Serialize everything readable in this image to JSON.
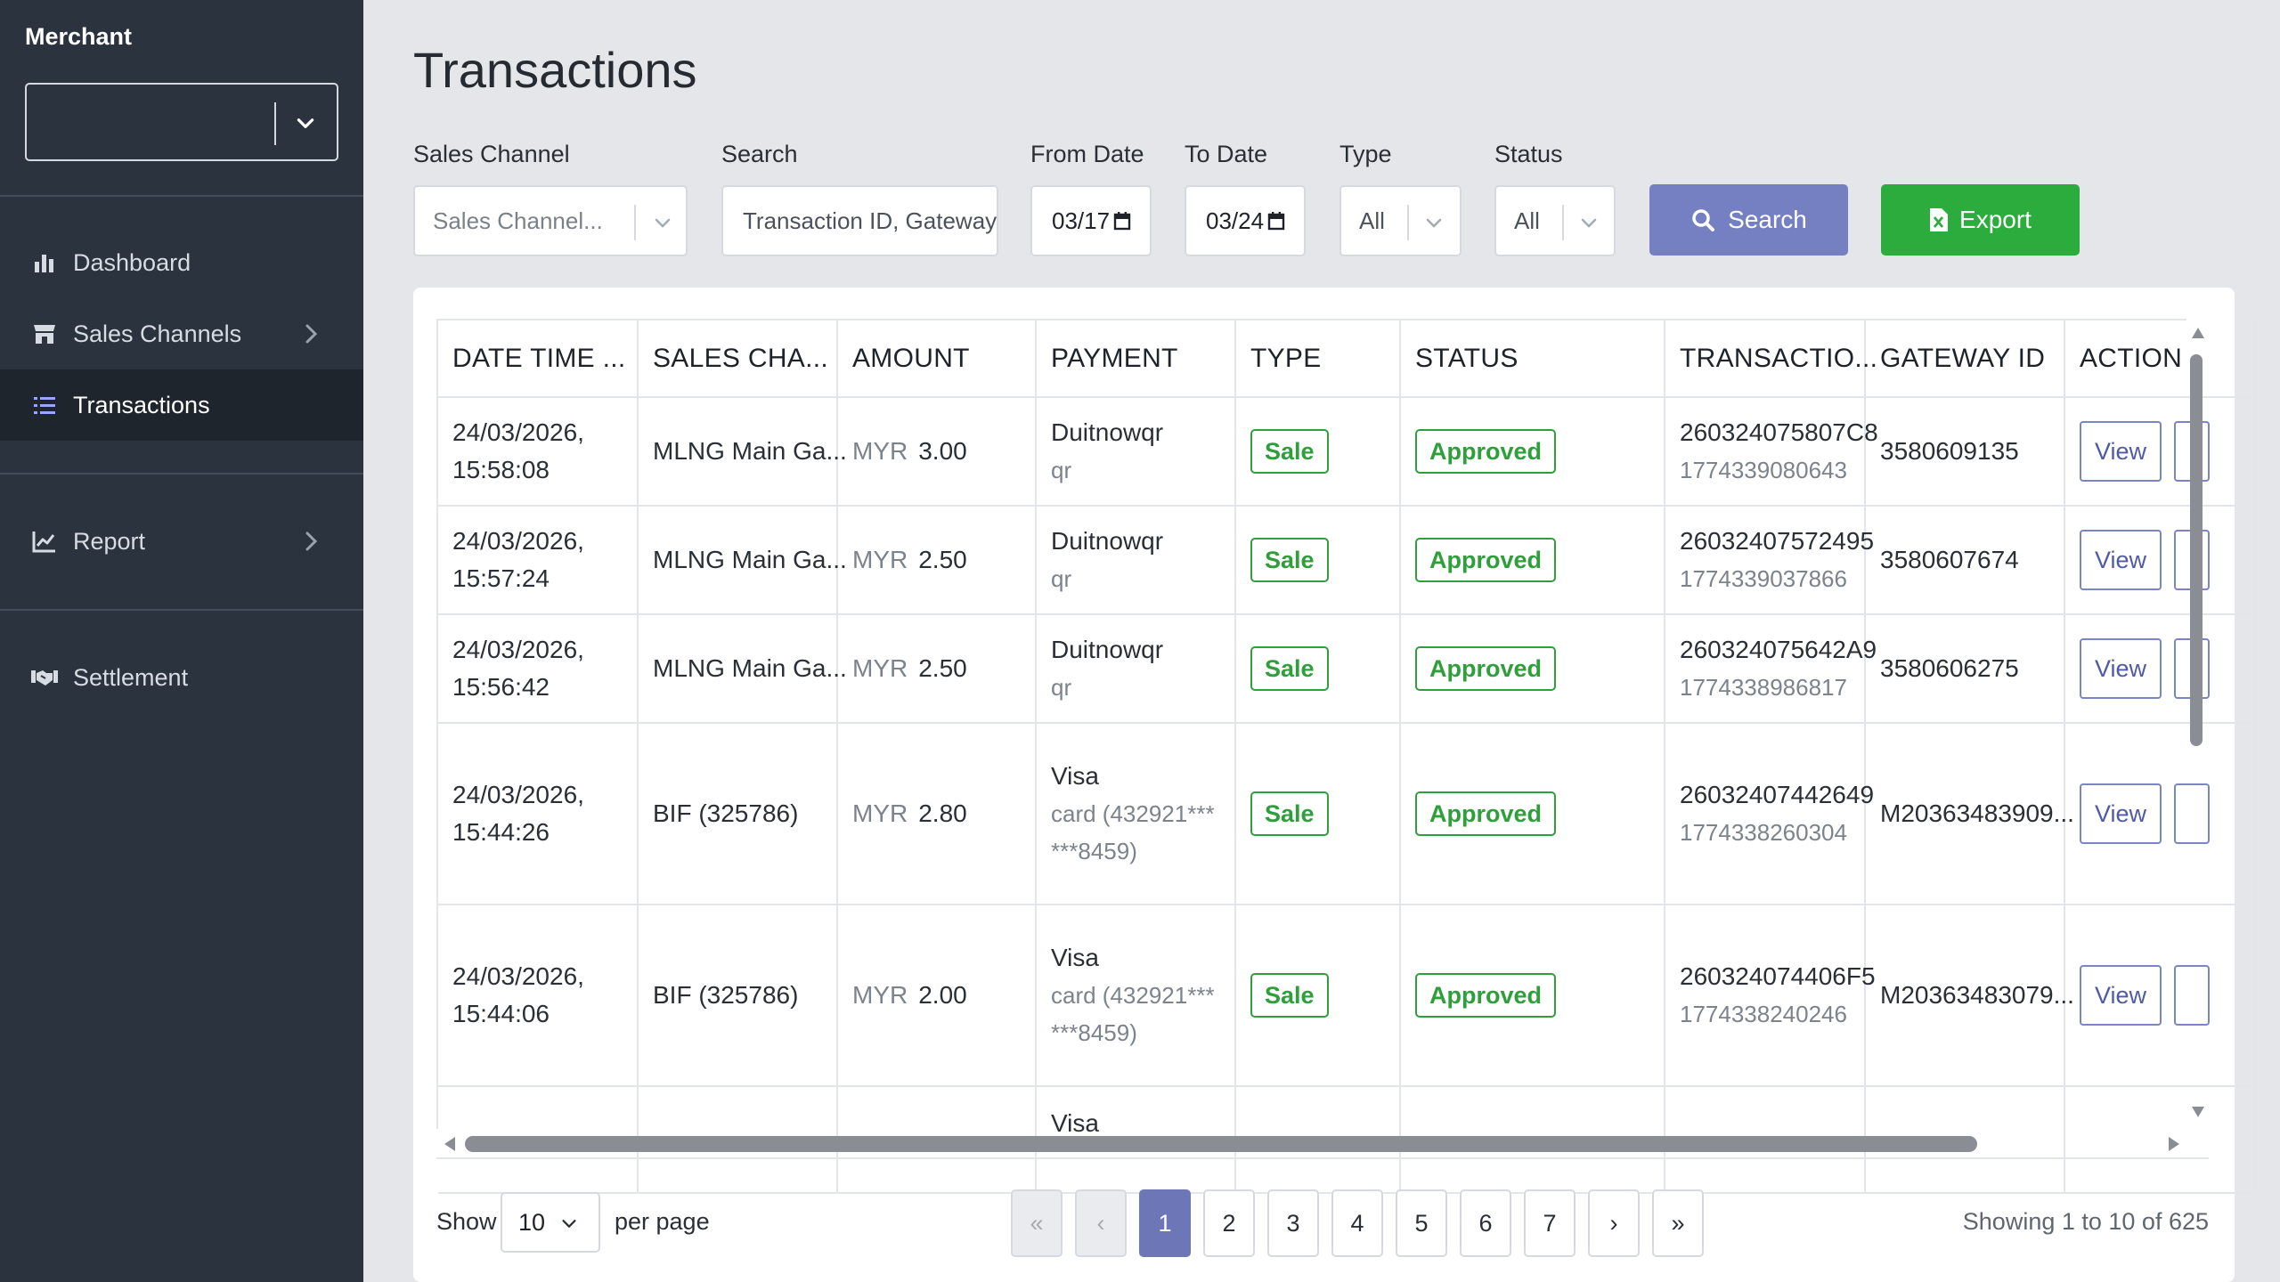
{
  "sidebar": {
    "title": "Merchant",
    "merchant_value": "",
    "items": [
      {
        "label": "Dashboard",
        "icon": "bar-chart-icon"
      },
      {
        "label": "Sales Channels",
        "icon": "store-icon"
      },
      {
        "label": "Transactions",
        "icon": "list-icon"
      },
      {
        "label": "Report",
        "icon": "line-chart-icon"
      },
      {
        "label": "Settlement",
        "icon": "handshake-icon"
      }
    ]
  },
  "page": {
    "title": "Transactions"
  },
  "filters": {
    "sales_channel_label": "Sales Channel",
    "sales_channel_placeholder": "Sales Channel...",
    "search_label": "Search",
    "search_placeholder": "Transaction ID, Gateway",
    "from_label": "From Date",
    "from_value": "03/17",
    "to_label": "To Date",
    "to_value": "03/24",
    "type_label": "Type",
    "type_value": "All",
    "status_label": "Status",
    "status_value": "All",
    "search_button": "Search",
    "export_button": "Export"
  },
  "table": {
    "headers": [
      "DATE TIME ...",
      "SALES CHA...",
      "AMOUNT",
      "PAYMENT",
      "TYPE",
      "STATUS",
      "TRANSACTIO...",
      "GATEWAY ID",
      "ACTION"
    ],
    "rows": [
      {
        "date": "24/03/2026,",
        "time": "15:58:08",
        "channel": "MLNG Main Ga...",
        "currency": "MYR",
        "amount": "3.00",
        "payment": "Duitnowqr",
        "payment_sub": "qr",
        "type": "Sale",
        "status": "Approved",
        "txn_id": "260324075807C8",
        "txn_sub": "1774339080643",
        "gateway": "3580609135",
        "action": "View"
      },
      {
        "date": "24/03/2026,",
        "time": "15:57:24",
        "channel": "MLNG Main Ga...",
        "currency": "MYR",
        "amount": "2.50",
        "payment": "Duitnowqr",
        "payment_sub": "qr",
        "type": "Sale",
        "status": "Approved",
        "txn_id": "26032407572495",
        "txn_sub": "1774339037866",
        "gateway": "3580607674",
        "action": "View"
      },
      {
        "date": "24/03/2026,",
        "time": "15:56:42",
        "channel": "MLNG Main Ga...",
        "currency": "MYR",
        "amount": "2.50",
        "payment": "Duitnowqr",
        "payment_sub": "qr",
        "type": "Sale",
        "status": "Approved",
        "txn_id": "260324075642A9",
        "txn_sub": "1774338986817",
        "gateway": "3580606275",
        "action": "View"
      },
      {
        "date": "24/03/2026,",
        "time": "15:44:26",
        "channel": "BIF (325786)",
        "currency": "MYR",
        "amount": "2.80",
        "payment": "Visa",
        "payment_sub": "card (432921******8459)",
        "type": "Sale",
        "status": "Approved",
        "txn_id": "26032407442649",
        "txn_sub": "1774338260304",
        "gateway": "M20363483909...",
        "action": "View"
      },
      {
        "date": "24/03/2026,",
        "time": "15:44:06",
        "channel": "BIF (325786)",
        "currency": "MYR",
        "amount": "2.00",
        "payment": "Visa",
        "payment_sub": "card (432921******8459)",
        "type": "Sale",
        "status": "Approved",
        "txn_id": "260324074406F5",
        "txn_sub": "1774338240246",
        "gateway": "M20363483079...",
        "action": "View"
      },
      {
        "date": "",
        "time": "",
        "channel": "",
        "currency": "",
        "amount": "",
        "payment": "Visa",
        "payment_sub": "",
        "type": "",
        "status": "",
        "txn_id": "",
        "txn_sub": "",
        "gateway": "",
        "action": ""
      }
    ]
  },
  "footer": {
    "show_label": "Show",
    "per_page_value": "10",
    "per_page_label": "per page",
    "pages": [
      "«",
      "‹",
      "1",
      "2",
      "3",
      "4",
      "5",
      "6",
      "7",
      "›",
      "»"
    ],
    "current_page": "1",
    "showing_text": "Showing 1 to 10 of 625"
  },
  "colors": {
    "sidebar_bg": "#2b333e",
    "sidebar_active": "#1f252d",
    "search_button": "#7580c2",
    "export_button": "#2cac3d",
    "badge_green": "#2f9f3b",
    "page_active": "#6d77b8"
  }
}
